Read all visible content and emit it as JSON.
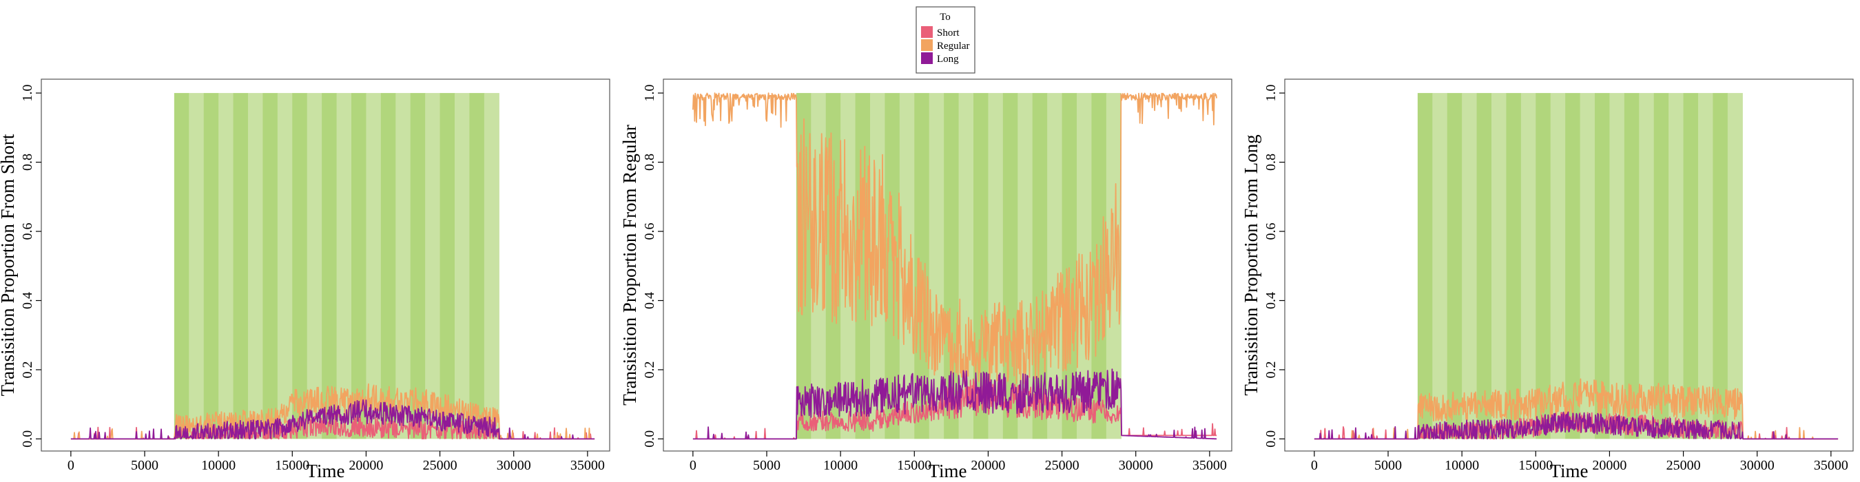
{
  "legend": {
    "title": "To",
    "items": [
      {
        "label": "Short",
        "color": "#ea5f78"
      },
      {
        "label": "Regular",
        "color": "#f2a460"
      },
      {
        "label": "Long",
        "color": "#901a97"
      }
    ]
  },
  "chart_data": [
    {
      "type": "line",
      "ylabel": "Transisition Proportion From Short",
      "xlabel": "Time",
      "xlim": [
        -2000,
        36500
      ],
      "ylim": [
        -0.035,
        1.04
      ],
      "xticks": [
        0,
        5000,
        10000,
        15000,
        20000,
        25000,
        30000,
        35000
      ],
      "yticks": [
        0.0,
        0.2,
        0.4,
        0.6,
        0.8,
        1.0
      ],
      "highlight_band": {
        "x": [
          7000,
          29000
        ],
        "y": [
          0.0,
          1.0
        ],
        "colors": [
          "#b1d67c",
          "#c9e2a3"
        ],
        "stripes": 22
      },
      "series": [
        {
          "name": "Short",
          "color": "#ea5f78",
          "profile": [
            [
              0,
              0.0
            ],
            [
              7000,
              0.0
            ],
            [
              7001,
              0.01
            ],
            [
              14000,
              0.02
            ],
            [
              17000,
              0.04
            ],
            [
              22000,
              0.03
            ],
            [
              29000,
              0.02
            ],
            [
              29001,
              0.0
            ],
            [
              35500,
              0.0
            ]
          ]
        },
        {
          "name": "Regular",
          "color": "#f2a460",
          "profile": [
            [
              0,
              0.0
            ],
            [
              7000,
              0.0
            ],
            [
              7001,
              0.04
            ],
            [
              14000,
              0.06
            ],
            [
              15000,
              0.1
            ],
            [
              20000,
              0.11
            ],
            [
              24000,
              0.1
            ],
            [
              29000,
              0.06
            ],
            [
              29001,
              0.0
            ],
            [
              35500,
              0.0
            ]
          ]
        },
        {
          "name": "Long",
          "color": "#901a97",
          "profile": [
            [
              0,
              0.0
            ],
            [
              7000,
              0.0
            ],
            [
              7001,
              0.01
            ],
            [
              14000,
              0.03
            ],
            [
              16000,
              0.06
            ],
            [
              20000,
              0.08
            ],
            [
              24000,
              0.06
            ],
            [
              29000,
              0.03
            ],
            [
              29001,
              0.0
            ],
            [
              35500,
              0.0
            ]
          ]
        }
      ]
    },
    {
      "type": "line",
      "ylabel": "Transisition Proportion From Regular",
      "xlabel": "Time",
      "xlim": [
        -2000,
        36500
      ],
      "ylim": [
        -0.035,
        1.04
      ],
      "xticks": [
        0,
        5000,
        10000,
        15000,
        20000,
        25000,
        30000,
        35000
      ],
      "yticks": [
        0.0,
        0.2,
        0.4,
        0.6,
        0.8,
        1.0
      ],
      "highlight_band": {
        "x": [
          7000,
          29000
        ],
        "y": [
          0.0,
          1.0
        ],
        "colors": [
          "#b1d67c",
          "#c9e2a3"
        ],
        "stripes": 22
      },
      "series": [
        {
          "name": "Regular",
          "color": "#f2a460",
          "profile": [
            [
              0,
              0.97
            ],
            [
              7000,
              0.97
            ],
            [
              7001,
              0.66
            ],
            [
              10000,
              0.6
            ],
            [
              13000,
              0.58
            ],
            [
              15000,
              0.4
            ],
            [
              17000,
              0.28
            ],
            [
              19000,
              0.28
            ],
            [
              23000,
              0.28
            ],
            [
              27000,
              0.4
            ],
            [
              29000,
              0.55
            ],
            [
              29001,
              0.97
            ],
            [
              35500,
              0.97
            ]
          ]
        },
        {
          "name": "Short",
          "color": "#ea5f78",
          "profile": [
            [
              0,
              0.0
            ],
            [
              7000,
              0.0
            ],
            [
              7001,
              0.05
            ],
            [
              12000,
              0.05
            ],
            [
              15000,
              0.08
            ],
            [
              19000,
              0.12
            ],
            [
              24000,
              0.1
            ],
            [
              29000,
              0.07
            ],
            [
              29001,
              0.01
            ],
            [
              35500,
              0.01
            ]
          ]
        },
        {
          "name": "Long",
          "color": "#901a97",
          "profile": [
            [
              0,
              0.0
            ],
            [
              7000,
              0.0
            ],
            [
              7001,
              0.11
            ],
            [
              12000,
              0.12
            ],
            [
              17000,
              0.14
            ],
            [
              22000,
              0.13
            ],
            [
              29000,
              0.14
            ],
            [
              29001,
              0.01
            ],
            [
              35500,
              0.0
            ]
          ]
        }
      ]
    },
    {
      "type": "line",
      "ylabel": "Transisition Proportion From Long",
      "xlabel": "Time",
      "xlim": [
        -2000,
        36500
      ],
      "ylim": [
        -0.035,
        1.04
      ],
      "xticks": [
        0,
        5000,
        10000,
        15000,
        20000,
        25000,
        30000,
        35000
      ],
      "yticks": [
        0.0,
        0.2,
        0.4,
        0.6,
        0.8,
        1.0
      ],
      "highlight_band": {
        "x": [
          7000,
          29000
        ],
        "y": [
          0.0,
          1.0
        ],
        "colors": [
          "#b1d67c",
          "#c9e2a3"
        ],
        "stripes": 22
      },
      "series": [
        {
          "name": "Regular",
          "color": "#f2a460",
          "profile": [
            [
              0,
              0.0
            ],
            [
              7000,
              0.0
            ],
            [
              7001,
              0.09
            ],
            [
              14000,
              0.1
            ],
            [
              18000,
              0.12
            ],
            [
              24000,
              0.11
            ],
            [
              29000,
              0.1
            ],
            [
              29001,
              0.0
            ],
            [
              35500,
              0.0
            ]
          ]
        },
        {
          "name": "Short",
          "color": "#ea5f78",
          "profile": [
            [
              0,
              0.0
            ],
            [
              7000,
              0.0
            ],
            [
              7001,
              0.01
            ],
            [
              14000,
              0.03
            ],
            [
              17000,
              0.05
            ],
            [
              22000,
              0.04
            ],
            [
              29000,
              0.02
            ],
            [
              29001,
              0.0
            ],
            [
              35500,
              0.0
            ]
          ]
        },
        {
          "name": "Long",
          "color": "#901a97",
          "profile": [
            [
              0,
              0.0
            ],
            [
              7000,
              0.0
            ],
            [
              7001,
              0.02
            ],
            [
              14000,
              0.03
            ],
            [
              17000,
              0.05
            ],
            [
              24000,
              0.03
            ],
            [
              29000,
              0.02
            ],
            [
              29001,
              0.0
            ],
            [
              35500,
              0.0
            ]
          ]
        }
      ]
    }
  ]
}
